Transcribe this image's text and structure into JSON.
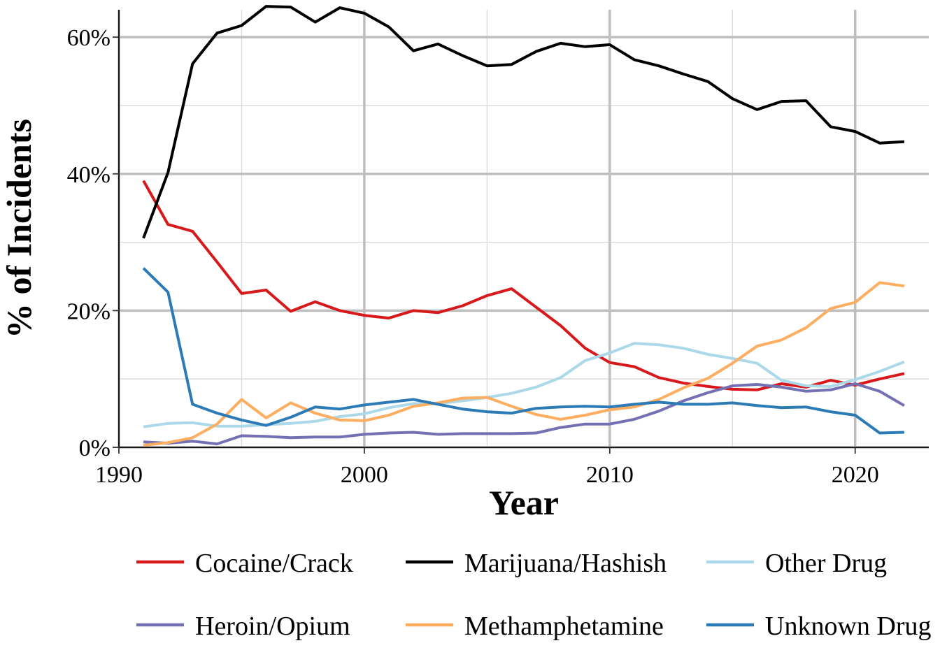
{
  "chart_data": {
    "type": "line",
    "xlabel": "Year",
    "ylabel": "% of Incidents",
    "xlim": [
      1990,
      2023
    ],
    "ylim": [
      0,
      0.64
    ],
    "x_ticks": [
      1990,
      2000,
      2010,
      2020
    ],
    "x_tick_labels": [
      "1990",
      "2000",
      "2010",
      "2020"
    ],
    "y_ticks": [
      0,
      0.2,
      0.4,
      0.6
    ],
    "y_tick_labels": [
      "0%",
      "20%",
      "40%",
      "60%"
    ],
    "grid": true,
    "legend_position": "bottom",
    "x": [
      1991,
      1992,
      1993,
      1994,
      1995,
      1996,
      1997,
      1998,
      1999,
      2000,
      2001,
      2002,
      2003,
      2004,
      2005,
      2006,
      2007,
      2008,
      2009,
      2010,
      2011,
      2012,
      2013,
      2014,
      2015,
      2016,
      2017,
      2018,
      2019,
      2020,
      2021,
      2022
    ],
    "series": [
      {
        "name": "Cocaine/Crack",
        "color": "#d7191c",
        "values": [
          0.39,
          0.326,
          0.316,
          0.271,
          0.225,
          0.23,
          0.199,
          0.213,
          0.2,
          0.193,
          0.189,
          0.2,
          0.197,
          0.207,
          0.222,
          0.232,
          0.205,
          0.178,
          0.145,
          0.124,
          0.118,
          0.102,
          0.094,
          0.089,
          0.085,
          0.084,
          0.093,
          0.088,
          0.098,
          0.091,
          0.1,
          0.108
        ]
      },
      {
        "name": "Marijuana/Hashish",
        "color": "#000000",
        "values": [
          0.306,
          0.402,
          0.561,
          0.606,
          0.617,
          0.645,
          0.644,
          0.622,
          0.643,
          0.635,
          0.615,
          0.58,
          0.59,
          0.573,
          0.558,
          0.56,
          0.579,
          0.591,
          0.586,
          0.589,
          0.567,
          0.558,
          0.546,
          0.535,
          0.51,
          0.494,
          0.506,
          0.507,
          0.469,
          0.462,
          0.445,
          0.447
        ]
      },
      {
        "name": "Other Drug",
        "color": "#abd9e9",
        "values": [
          0.03,
          0.035,
          0.036,
          0.031,
          0.031,
          0.033,
          0.035,
          0.038,
          0.045,
          0.049,
          0.058,
          0.064,
          0.064,
          0.068,
          0.073,
          0.079,
          0.088,
          0.102,
          0.127,
          0.138,
          0.152,
          0.15,
          0.145,
          0.136,
          0.13,
          0.123,
          0.098,
          0.09,
          0.089,
          0.099,
          0.111,
          0.125
        ]
      },
      {
        "name": "Heroin/Opium",
        "color": "#7570b3",
        "values": [
          0.008,
          0.006,
          0.009,
          0.005,
          0.017,
          0.016,
          0.014,
          0.015,
          0.015,
          0.019,
          0.021,
          0.022,
          0.019,
          0.02,
          0.02,
          0.02,
          0.021,
          0.029,
          0.034,
          0.034,
          0.041,
          0.053,
          0.068,
          0.08,
          0.09,
          0.092,
          0.088,
          0.082,
          0.084,
          0.093,
          0.082,
          0.061
        ]
      },
      {
        "name": "Methamphetamine",
        "color": "#fdae61",
        "values": [
          0.003,
          0.007,
          0.014,
          0.034,
          0.07,
          0.043,
          0.065,
          0.05,
          0.04,
          0.039,
          0.047,
          0.06,
          0.065,
          0.072,
          0.073,
          0.06,
          0.048,
          0.041,
          0.047,
          0.055,
          0.059,
          0.07,
          0.087,
          0.101,
          0.123,
          0.148,
          0.157,
          0.175,
          0.203,
          0.212,
          0.241,
          0.236
        ]
      },
      {
        "name": "Unknown Drug",
        "color": "#2c7bb6",
        "values": [
          0.262,
          0.227,
          0.063,
          0.05,
          0.04,
          0.032,
          0.044,
          0.059,
          0.056,
          0.062,
          0.066,
          0.07,
          0.063,
          0.056,
          0.052,
          0.05,
          0.057,
          0.059,
          0.06,
          0.059,
          0.063,
          0.066,
          0.063,
          0.063,
          0.065,
          0.061,
          0.058,
          0.059,
          0.052,
          0.047,
          0.021,
          0.022
        ]
      }
    ]
  }
}
